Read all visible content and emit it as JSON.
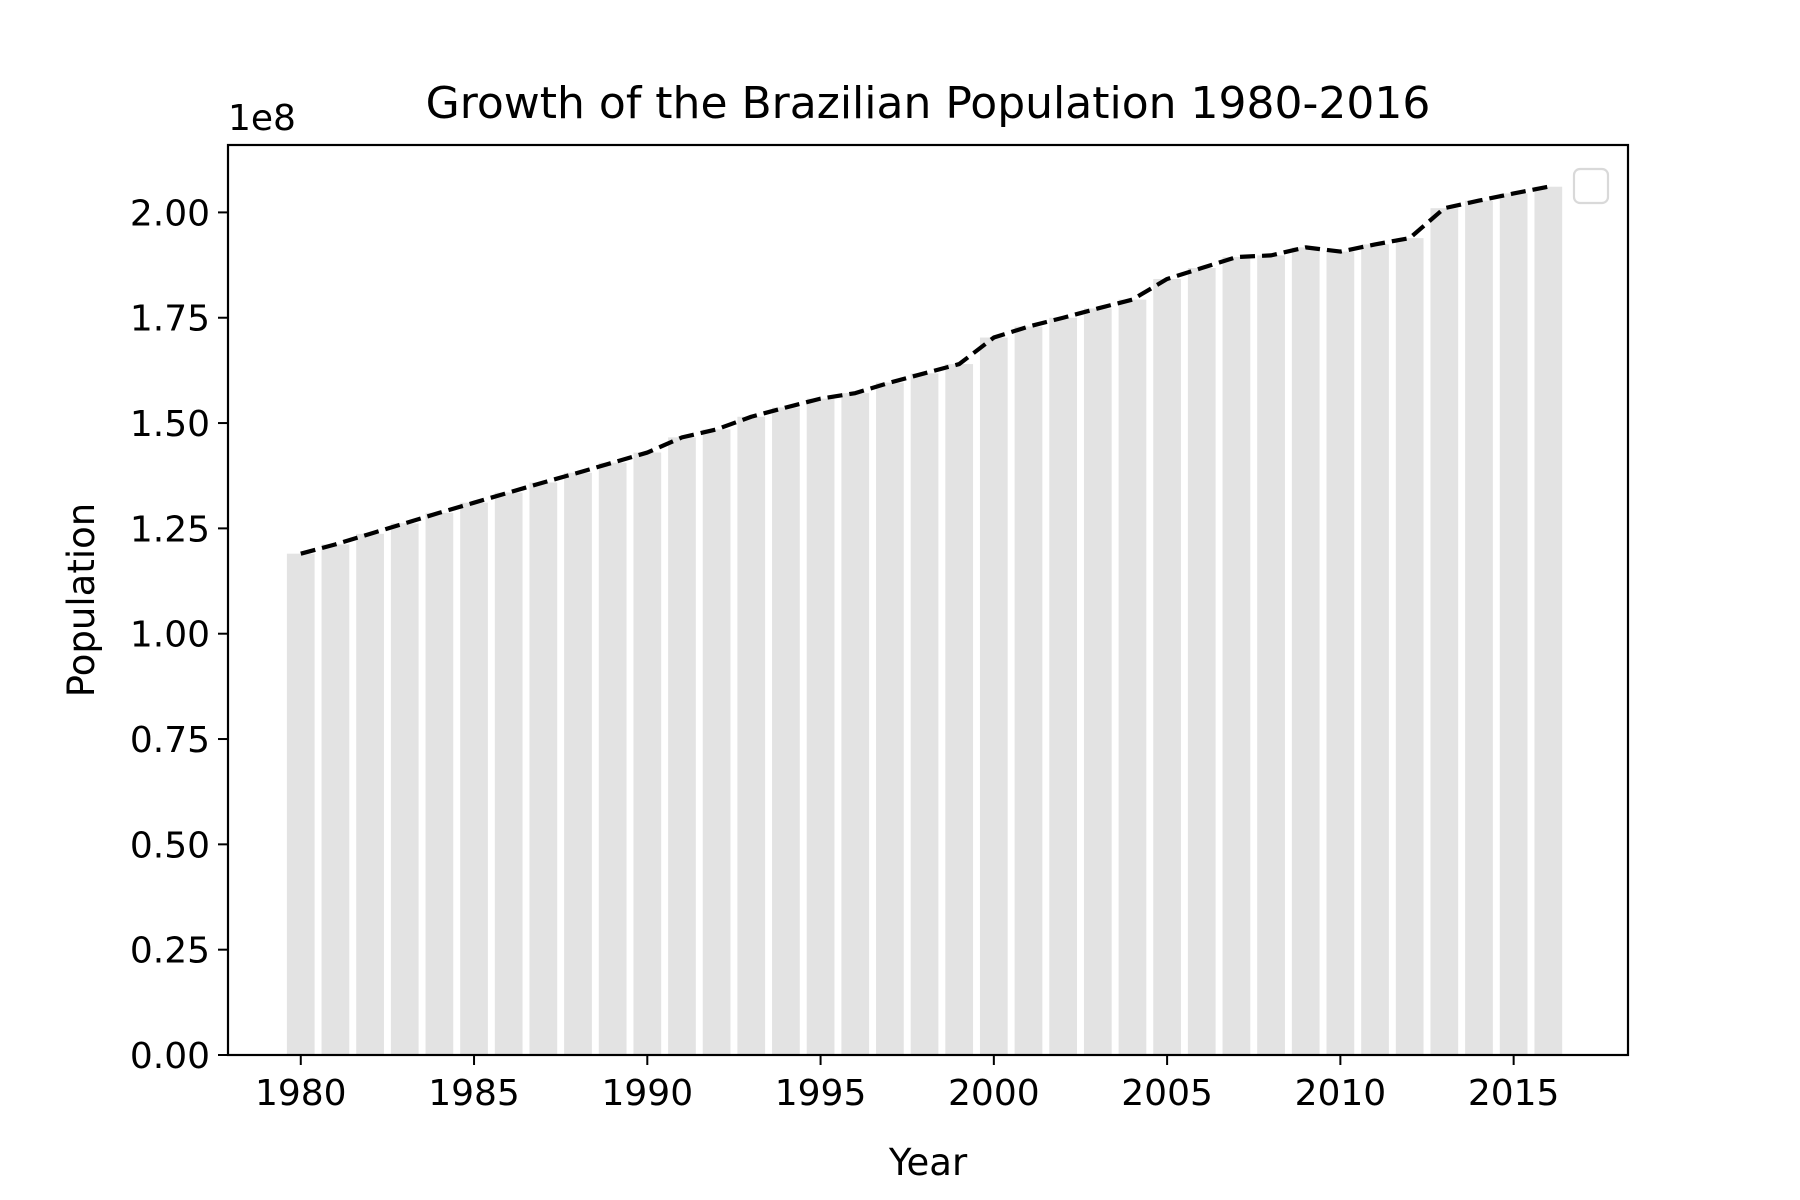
{
  "chart_data": {
    "type": "bar",
    "title": "Growth of the Brazilian Population 1980-2016",
    "xlabel": "Year",
    "ylabel": "Population",
    "y_offset_label": "1e8",
    "xlim": [
      1977.9,
      2018.3
    ],
    "ylim": [
      0,
      216000000
    ],
    "x_ticks": [
      1980,
      1985,
      1990,
      1995,
      2000,
      2005,
      2010,
      2015
    ],
    "y_ticks": [
      0,
      25000000,
      50000000,
      75000000,
      100000000,
      125000000,
      150000000,
      175000000,
      200000000
    ],
    "y_tick_labels": [
      "0.00",
      "0.25",
      "0.50",
      "0.75",
      "1.00",
      "1.25",
      "1.50",
      "1.75",
      "2.00"
    ],
    "legend": {
      "position": "top-right",
      "entries": []
    },
    "grid": false,
    "x": [
      1980,
      1981,
      1982,
      1983,
      1984,
      1985,
      1986,
      1987,
      1988,
      1989,
      1990,
      1991,
      1992,
      1993,
      1994,
      1995,
      1996,
      1997,
      1998,
      1999,
      2000,
      2001,
      2002,
      2003,
      2004,
      2005,
      2006,
      2007,
      2008,
      2009,
      2010,
      2011,
      2012,
      2013,
      2014,
      2015,
      2016
    ],
    "series": [
      {
        "kind": "bar",
        "color": "#e3e3e3",
        "values": [
          119000000,
          121200000,
          123700000,
          126200000,
          128700000,
          131100000,
          133500000,
          135900000,
          138200000,
          140600000,
          143000000,
          146600000,
          148500000,
          151500000,
          153700000,
          155800000,
          157100000,
          159600000,
          161800000,
          164000000,
          170300000,
          172900000,
          175000000,
          177200000,
          179300000,
          184200000,
          186800000,
          189400000,
          189800000,
          191700000,
          190700000,
          192400000,
          193900000,
          201000000,
          202800000,
          204500000,
          206100000
        ]
      },
      {
        "kind": "line",
        "style": "dashed",
        "color": "#000000",
        "values": [
          119000000,
          121200000,
          123700000,
          126200000,
          128700000,
          131100000,
          133500000,
          135900000,
          138200000,
          140600000,
          143000000,
          146600000,
          148500000,
          151500000,
          153700000,
          155800000,
          157100000,
          159600000,
          161800000,
          164000000,
          170300000,
          172900000,
          175000000,
          177200000,
          179300000,
          184200000,
          186800000,
          189400000,
          189800000,
          191700000,
          190700000,
          192400000,
          193900000,
          201000000,
          202800000,
          204500000,
          206100000
        ]
      }
    ]
  }
}
